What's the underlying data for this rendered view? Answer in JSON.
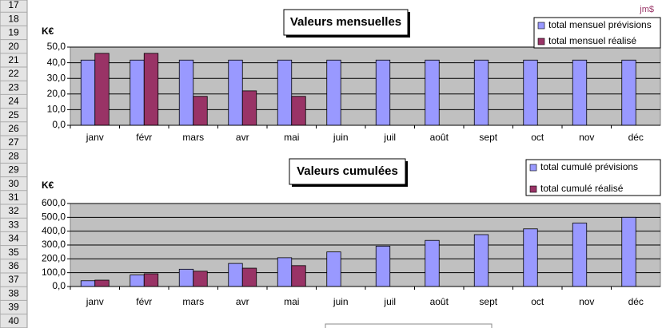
{
  "row_headers": [
    "17",
    "18",
    "19",
    "20",
    "21",
    "22",
    "23",
    "24",
    "25",
    "26",
    "27",
    "28",
    "29",
    "30",
    "31",
    "32",
    "33",
    "34",
    "35",
    "36",
    "37",
    "38",
    "39",
    "40"
  ],
  "signature": "jm$",
  "chart_data": [
    {
      "type": "bar",
      "title": "Valeurs mensuelles",
      "y_label": "K€",
      "categories": [
        "janv",
        "févr",
        "mars",
        "avr",
        "mai",
        "juin",
        "juil",
        "août",
        "sept",
        "oct",
        "nov",
        "déc"
      ],
      "series": [
        {
          "name": "total mensuel prévisions",
          "color": "#9999ff",
          "values": [
            41.7,
            41.7,
            41.7,
            41.7,
            41.7,
            41.7,
            41.7,
            41.7,
            41.7,
            41.7,
            41.7,
            41.7
          ]
        },
        {
          "name": "total mensuel réalisé",
          "color": "#993366",
          "values": [
            46,
            46,
            18.5,
            22,
            18.5,
            null,
            null,
            null,
            null,
            null,
            null,
            null
          ]
        }
      ],
      "ylim": [
        0,
        50
      ],
      "yticks": [
        {
          "value": 0,
          "label": "0,0"
        },
        {
          "value": 10,
          "label": "10,0"
        },
        {
          "value": 20,
          "label": "20,0"
        },
        {
          "value": 30,
          "label": "30,0"
        },
        {
          "value": 40,
          "label": "40,0"
        },
        {
          "value": 50,
          "label": "50,0"
        }
      ],
      "grid": true,
      "legend": "top-right",
      "plot_color": "#c0c0c0"
    },
    {
      "type": "bar",
      "title": "Valeurs cumulées",
      "y_label": "K€",
      "categories": [
        "janv",
        "févr",
        "mars",
        "avr",
        "mai",
        "juin",
        "juil",
        "août",
        "sept",
        "oct",
        "nov",
        "déc"
      ],
      "series": [
        {
          "name": "total cumulé prévisions",
          "color": "#9999ff",
          "values": [
            41.7,
            83.3,
            125,
            166.7,
            208.3,
            250,
            291.7,
            333.3,
            375,
            416.7,
            458.3,
            500
          ]
        },
        {
          "name": "total cumulé réalisé",
          "color": "#993366",
          "values": [
            46,
            92,
            110.5,
            132.5,
            151,
            null,
            null,
            null,
            null,
            null,
            null,
            null
          ]
        }
      ],
      "ylim": [
        0,
        600
      ],
      "yticks": [
        {
          "value": 0,
          "label": "0,0"
        },
        {
          "value": 100,
          "label": "100,0"
        },
        {
          "value": 200,
          "label": "200,0"
        },
        {
          "value": 300,
          "label": "300,0"
        },
        {
          "value": 400,
          "label": "400,0"
        },
        {
          "value": 500,
          "label": "500,0"
        },
        {
          "value": 600,
          "label": "600,0"
        }
      ],
      "grid": true,
      "legend": "top-right",
      "plot_color": "#c0c0c0"
    }
  ]
}
